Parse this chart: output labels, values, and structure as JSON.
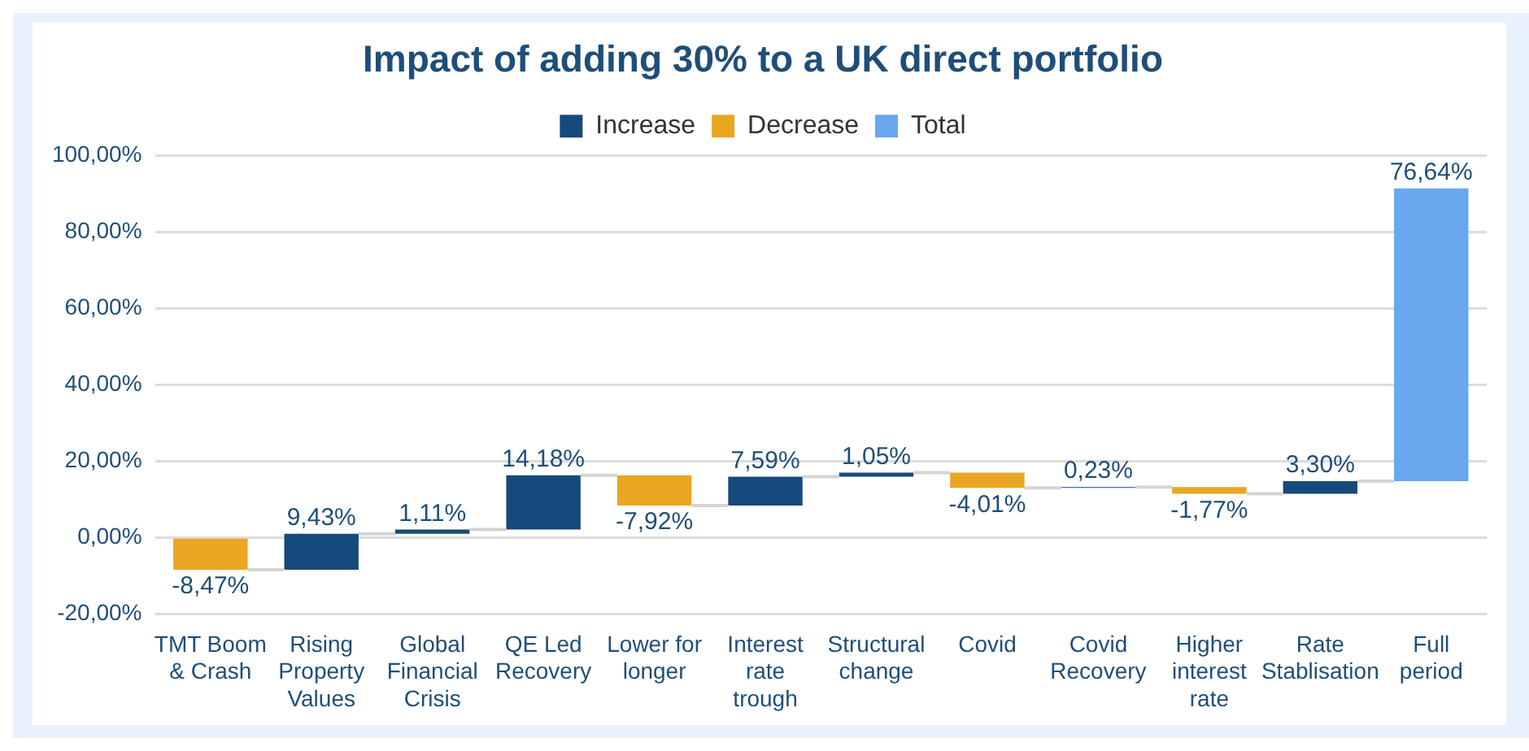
{
  "chart_data": {
    "type": "bar",
    "title": "Impact of adding 30% to a UK direct portfolio",
    "categories": [
      "TMT Boom & Crash",
      "Rising Property Values",
      "Global Financial Crisis",
      "QE Led Recovery",
      "Lower for longer",
      "Interest rate trough",
      "Structural change",
      "Covid",
      "Covid Recovery",
      "Higher interest rate",
      "Rate Stablisation",
      "Full period"
    ],
    "series": [
      {
        "name": "Increase",
        "color": "#174a7c",
        "base": [
          null,
          -8.47,
          0.96,
          2.07,
          null,
          8.33,
          15.92,
          null,
          12.96,
          null,
          11.42,
          null
        ],
        "values": [
          null,
          9.43,
          1.11,
          14.18,
          null,
          7.59,
          1.05,
          null,
          0.23,
          null,
          3.3,
          null
        ],
        "value_labels": [
          null,
          "9,43%",
          "1,11%",
          "14,18%",
          null,
          "7,59%",
          "1,05%",
          null,
          "0,23%",
          null,
          "3,30%",
          null
        ]
      },
      {
        "name": "Decrease",
        "color": "#e9a620",
        "base": [
          0,
          null,
          null,
          null,
          16.25,
          null,
          null,
          16.97,
          null,
          13.19,
          null,
          null
        ],
        "values": [
          -8.47,
          null,
          null,
          null,
          -7.92,
          null,
          null,
          -4.01,
          null,
          -1.77,
          null,
          null
        ],
        "value_labels": [
          "-8,47%",
          null,
          null,
          null,
          "-7,92%",
          null,
          null,
          "-4,01%",
          null,
          "-1,77%",
          null,
          null
        ]
      },
      {
        "name": "Total",
        "color": "#69a8ee",
        "base": [
          null,
          null,
          null,
          null,
          null,
          null,
          null,
          null,
          null,
          null,
          null,
          14.72
        ],
        "values": [
          null,
          null,
          null,
          null,
          null,
          null,
          null,
          null,
          null,
          null,
          null,
          76.64
        ],
        "value_labels": [
          null,
          null,
          null,
          null,
          null,
          null,
          null,
          null,
          null,
          null,
          null,
          "76,64%"
        ]
      }
    ],
    "ylim": [
      -20,
      100
    ],
    "yticks": [
      {
        "value": -20,
        "label": "-20,00%"
      },
      {
        "value": 0,
        "label": "0,00%"
      },
      {
        "value": 20,
        "label": "20,00%"
      },
      {
        "value": 40,
        "label": "40,00%"
      },
      {
        "value": 60,
        "label": "60,00%"
      },
      {
        "value": 80,
        "label": "80,00%"
      },
      {
        "value": 100,
        "label": "100,00%"
      }
    ],
    "grid": "y",
    "legend": "top"
  }
}
